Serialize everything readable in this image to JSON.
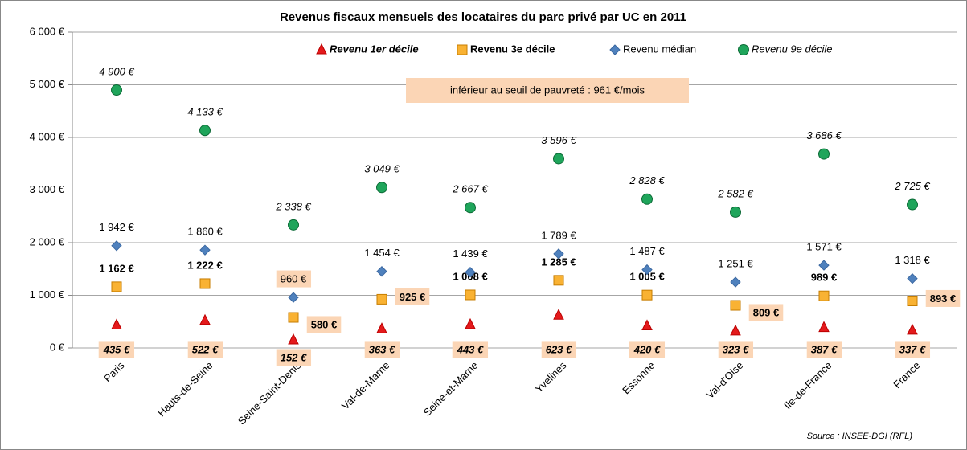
{
  "chart_data": {
    "type": "scatter",
    "title": "Revenus fiscaux mensuels des locataires du parc privé par UC en 2011",
    "annotation": "inférieur au seuil de pauvreté : 961 €/mois",
    "threshold": 961,
    "source": "Source : INSEE-DGI (RFL)",
    "categories": [
      "Paris",
      "Hauts-de-Seine",
      "Seine-Saint-Denis",
      "Val-de-Marne",
      "Seine-et-Marne",
      "Yvelines",
      "Essonne",
      "Val-d'Oise",
      "Ile-de-France",
      "France"
    ],
    "ylim": [
      0,
      6000
    ],
    "yticks": [
      {
        "value": 0,
        "label": "0 €"
      },
      {
        "value": 1000,
        "label": "1 000 €"
      },
      {
        "value": 2000,
        "label": "2 000 €"
      },
      {
        "value": 3000,
        "label": "3 000 €"
      },
      {
        "value": 4000,
        "label": "4 000 €"
      },
      {
        "value": 5000,
        "label": "5 000 €"
      },
      {
        "value": 6000,
        "label": "6 000 €"
      }
    ],
    "grid": true,
    "series": [
      {
        "name": "Revenu 1er décile",
        "color": "#e41a1c",
        "marker": "triangle",
        "values": [
          435,
          522,
          152,
          363,
          443,
          623,
          420,
          323,
          387,
          337
        ],
        "value_labels": [
          "435 €",
          "522 €",
          "152 €",
          "363 €",
          "443 €",
          "623 €",
          "420 €",
          "323 €",
          "387 €",
          "337 €"
        ]
      },
      {
        "name": "Revenu 3e décile",
        "color": "#f9b233",
        "marker": "square",
        "values": [
          1162,
          1222,
          580,
          925,
          1008,
          1285,
          1005,
          809,
          989,
          893
        ],
        "value_labels": [
          "1 162 €",
          "1 222 €",
          "580 €",
          "925 €",
          "1 008 €",
          "1 285 €",
          "1 005 €",
          "809 €",
          "989 €",
          "893 €"
        ]
      },
      {
        "name": "Revenu médian",
        "color": "#4f81bd",
        "marker": "diamond",
        "values": [
          1942,
          1860,
          960,
          1454,
          1439,
          1789,
          1487,
          1251,
          1571,
          1318
        ],
        "value_labels": [
          "1 942 €",
          "1 860 €",
          "960 €",
          "1 454 €",
          "1 439 €",
          "1 789 €",
          "1 487 €",
          "1 251 €",
          "1 571 €",
          "1 318 €"
        ]
      },
      {
        "name": "Revenu 9e décile",
        "color": "#1fa55b",
        "marker": "circle",
        "values": [
          4900,
          4133,
          2338,
          3049,
          2667,
          3596,
          2828,
          2582,
          3686,
          2725
        ],
        "value_labels": [
          "4 900 €",
          "4 133 €",
          "2 338 €",
          "3 049 €",
          "2 667 €",
          "3 596 €",
          "2 828 €",
          "2 582 €",
          "3 686 €",
          "2 725 €"
        ]
      }
    ]
  }
}
